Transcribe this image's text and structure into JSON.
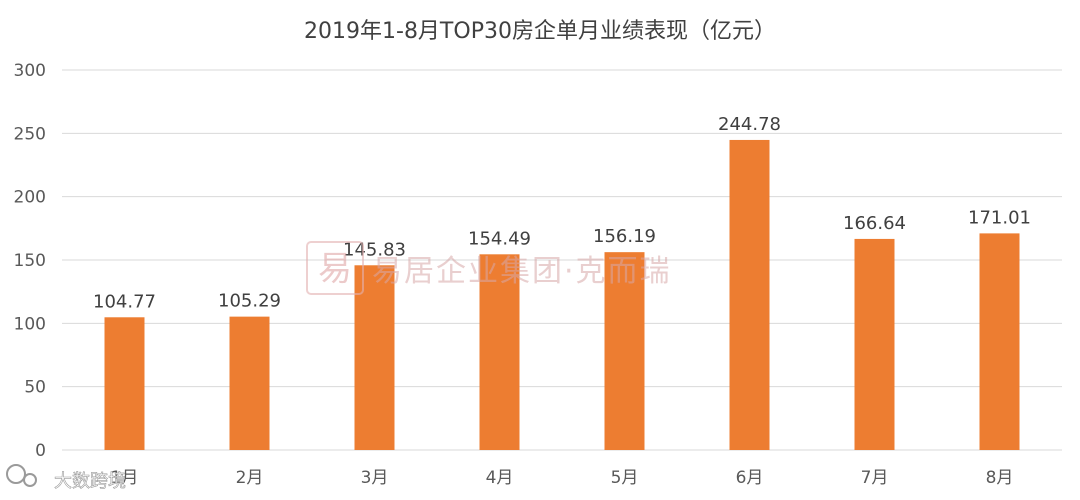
{
  "chart_data": {
    "type": "bar",
    "title": "2019年1-8月TOP30房企单月业绩表现（亿元）",
    "categories": [
      "1月",
      "2月",
      "3月",
      "4月",
      "5月",
      "6月",
      "7月",
      "8月"
    ],
    "series": [
      {
        "values": [
          104.77,
          105.29,
          145.83,
          154.49,
          156.19,
          244.78,
          166.64,
          171.01
        ]
      }
    ],
    "data_labels": [
      "104.77",
      "105.29",
      "145.83",
      "154.49",
      "156.19",
      "244.78",
      "166.64",
      "171.01"
    ],
    "ylim": [
      0,
      300
    ],
    "yticks": [
      0,
      50,
      100,
      150,
      200,
      250,
      300
    ],
    "grid": true,
    "legend": "none",
    "colors": {
      "bar": "#ED7D31",
      "grid": "#D9D9D9",
      "text": "#595959"
    }
  },
  "watermarks": {
    "center_text": "易居企业集团·克而瑞",
    "logo_glyph": "易",
    "bottom_left_text": "大数跨境"
  }
}
